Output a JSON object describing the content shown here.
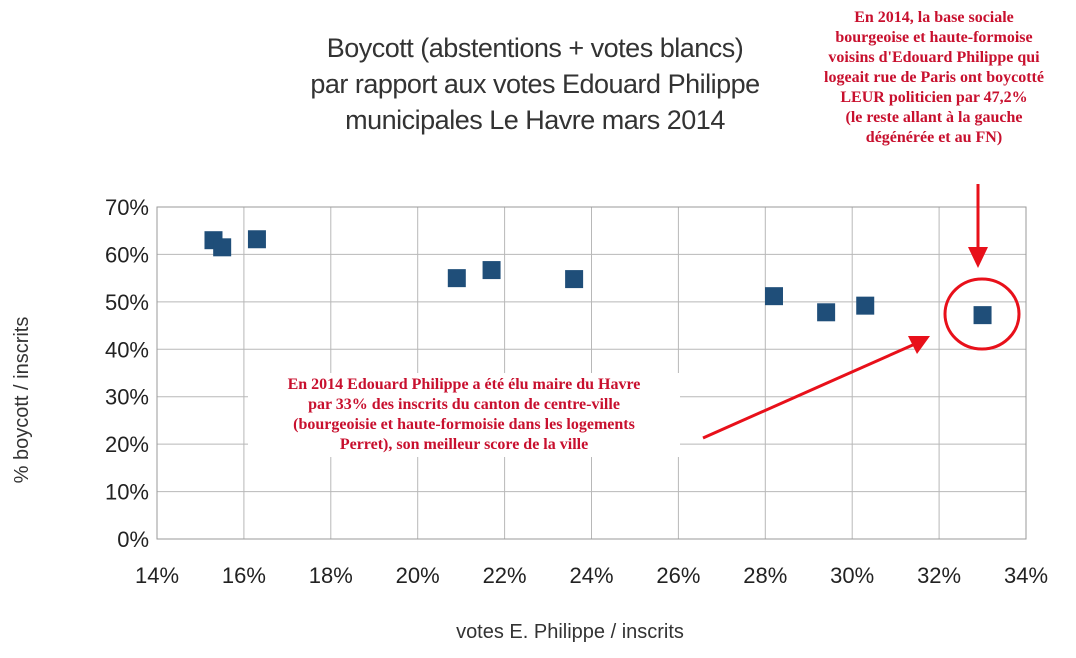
{
  "chart_data": {
    "type": "scatter",
    "title_lines": [
      "Boycott (abstentions + votes blancs)",
      "par rapport aux votes Edouard Philippe",
      "municipales Le Havre mars 2014"
    ],
    "xlabel": "votes E. Philippe / inscrits",
    "ylabel": "% boycott / inscrits",
    "xlim": [
      14,
      34
    ],
    "ylim": [
      0,
      70
    ],
    "x_ticks": [
      14,
      16,
      18,
      20,
      22,
      24,
      26,
      28,
      30,
      32,
      34
    ],
    "y_ticks": [
      0,
      10,
      20,
      30,
      40,
      50,
      60,
      70
    ],
    "x_tick_labels": [
      "14%",
      "16%",
      "18%",
      "20%",
      "22%",
      "24%",
      "26%",
      "28%",
      "30%",
      "32%",
      "34%"
    ],
    "y_tick_labels": [
      "0%",
      "10%",
      "20%",
      "30%",
      "40%",
      "50%",
      "60%",
      "70%"
    ],
    "grid": true,
    "marker": "square",
    "marker_color": "#1f4e79",
    "points": [
      {
        "x": 15.3,
        "y": 63.0
      },
      {
        "x": 15.5,
        "y": 61.5
      },
      {
        "x": 16.3,
        "y": 63.2
      },
      {
        "x": 20.9,
        "y": 55.0
      },
      {
        "x": 21.7,
        "y": 56.7
      },
      {
        "x": 23.6,
        "y": 54.8
      },
      {
        "x": 28.2,
        "y": 51.2
      },
      {
        "x": 29.4,
        "y": 47.8
      },
      {
        "x": 30.3,
        "y": 49.2
      },
      {
        "x": 33.0,
        "y": 47.2
      }
    ],
    "highlight_point_index": 9,
    "annotation_color": "#e8101a"
  },
  "annotations": {
    "top_right_lines": [
      "En 2014, la base sociale",
      "bourgeoise et haute-formoise",
      "voisins d'Edouard Philippe qui",
      "logeait rue de Paris ont boycotté",
      "LEUR politicien par 47,2%",
      "(le reste allant à la gauche",
      "dégénérée et au FN)"
    ],
    "middle_lines": [
      "En 2014 Edouard Philippe a été élu maire du Havre",
      "par 33% des inscrits du canton de centre-ville",
      "(bourgeoisie et haute-formoisie dans les logements",
      "Perret), son meilleur score de la ville"
    ]
  }
}
